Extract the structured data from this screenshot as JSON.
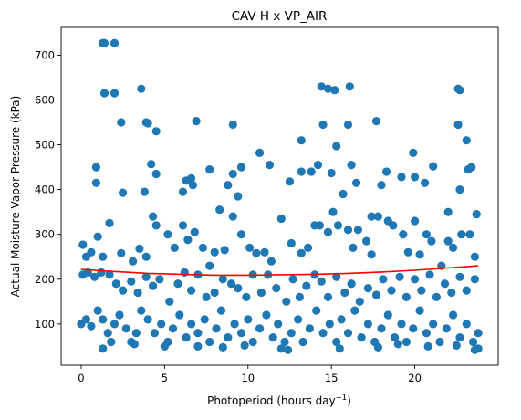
{
  "chart_data": {
    "type": "scatter",
    "title": "CAV H x VP_AIR",
    "xlabel_main": "Photoperiod (hours day",
    "xlabel_exp": "−1",
    "xlabel_end": ")",
    "ylabel": "Actual Moisture Vapor Pressure (kPa)",
    "xlim": [
      -1.2,
      25.0
    ],
    "ylim": [
      8,
      762
    ],
    "xticks": [
      0,
      5,
      10,
      15,
      20
    ],
    "yticks": [
      100,
      200,
      300,
      400,
      500,
      600,
      700
    ],
    "grid": false,
    "point_color": "#1f77b4",
    "fit_color": "#ff0000",
    "fit_curve": {
      "x": [
        0.0,
        2.0,
        4.0,
        6.0,
        8.0,
        10.0,
        12.0,
        14.0,
        16.0,
        18.0,
        20.0,
        22.0,
        23.8
      ],
      "y": [
        222,
        217,
        213,
        211,
        209,
        209,
        210,
        211,
        213,
        216,
        220,
        225,
        230
      ]
    },
    "points": [
      [
        1.3,
        727
      ],
      [
        1.4,
        727
      ],
      [
        2.0,
        727
      ],
      [
        1.4,
        615
      ],
      [
        2.0,
        615
      ],
      [
        3.6,
        625
      ],
      [
        14.4,
        630
      ],
      [
        14.8,
        625
      ],
      [
        15.2,
        622
      ],
      [
        16.1,
        630
      ],
      [
        22.6,
        625
      ],
      [
        22.7,
        622
      ],
      [
        2.4,
        550
      ],
      [
        3.9,
        550
      ],
      [
        4.0,
        548
      ],
      [
        6.9,
        553
      ],
      [
        9.1,
        545
      ],
      [
        13.2,
        510
      ],
      [
        14.5,
        545
      ],
      [
        15.3,
        497
      ],
      [
        16.0,
        545
      ],
      [
        17.7,
        553
      ],
      [
        22.6,
        545
      ],
      [
        23.1,
        510
      ],
      [
        4.5,
        530
      ],
      [
        0.9,
        450
      ],
      [
        0.9,
        415
      ],
      [
        2.5,
        393
      ],
      [
        3.8,
        395
      ],
      [
        4.2,
        457
      ],
      [
        4.5,
        435
      ],
      [
        6.1,
        395
      ],
      [
        6.3,
        420
      ],
      [
        6.7,
        410
      ],
      [
        6.6,
        425
      ],
      [
        7.7,
        445
      ],
      [
        8.3,
        355
      ],
      [
        8.8,
        410
      ],
      [
        9.1,
        435
      ],
      [
        9.4,
        385
      ],
      [
        9.6,
        450
      ],
      [
        10.7,
        482
      ],
      [
        11.3,
        455
      ],
      [
        12.5,
        418
      ],
      [
        13.2,
        440
      ],
      [
        13.8,
        440
      ],
      [
        14.2,
        455
      ],
      [
        15.0,
        437
      ],
      [
        15.7,
        390
      ],
      [
        16.2,
        455
      ],
      [
        16.5,
        415
      ],
      [
        17.4,
        340
      ],
      [
        18.0,
        410
      ],
      [
        18.3,
        440
      ],
      [
        19.2,
        428
      ],
      [
        19.9,
        482
      ],
      [
        20.0,
        428
      ],
      [
        20.6,
        415
      ],
      [
        21.1,
        452
      ],
      [
        22.0,
        350
      ],
      [
        22.7,
        400
      ],
      [
        23.2,
        445
      ],
      [
        23.4,
        450
      ],
      [
        23.7,
        345
      ],
      [
        0.1,
        277
      ],
      [
        0.3,
        250
      ],
      [
        0.6,
        260
      ],
      [
        1.0,
        295
      ],
      [
        1.3,
        250
      ],
      [
        1.7,
        325
      ],
      [
        2.4,
        258
      ],
      [
        3.1,
        240
      ],
      [
        3.5,
        268
      ],
      [
        3.9,
        250
      ],
      [
        4.3,
        340
      ],
      [
        4.5,
        320
      ],
      [
        5.2,
        300
      ],
      [
        5.6,
        270
      ],
      [
        6.1,
        320
      ],
      [
        6.4,
        288
      ],
      [
        6.8,
        305
      ],
      [
        7.3,
        270
      ],
      [
        7.7,
        230
      ],
      [
        8.0,
        260
      ],
      [
        8.6,
        265
      ],
      [
        9.1,
        340
      ],
      [
        9.6,
        300
      ],
      [
        10.1,
        270
      ],
      [
        10.5,
        258
      ],
      [
        11.0,
        260
      ],
      [
        11.4,
        240
      ],
      [
        12.0,
        335
      ],
      [
        12.6,
        280
      ],
      [
        13.2,
        258
      ],
      [
        13.6,
        270
      ],
      [
        14.0,
        320
      ],
      [
        14.3,
        320
      ],
      [
        14.8,
        305
      ],
      [
        15.1,
        350
      ],
      [
        15.4,
        320
      ],
      [
        16.0,
        310
      ],
      [
        16.3,
        270
      ],
      [
        16.6,
        310
      ],
      [
        17.1,
        285
      ],
      [
        17.4,
        255
      ],
      [
        17.8,
        340
      ],
      [
        18.4,
        330
      ],
      [
        18.7,
        320
      ],
      [
        19.3,
        300
      ],
      [
        19.6,
        260
      ],
      [
        20.0,
        330
      ],
      [
        20.3,
        255
      ],
      [
        20.7,
        300
      ],
      [
        21.0,
        285
      ],
      [
        21.6,
        230
      ],
      [
        22.0,
        285
      ],
      [
        22.3,
        270
      ],
      [
        22.8,
        300
      ],
      [
        23.3,
        300
      ],
      [
        23.6,
        250
      ],
      [
        0.1,
        210
      ],
      [
        0.4,
        215
      ],
      [
        0.8,
        205
      ],
      [
        1.2,
        215
      ],
      [
        1.7,
        210
      ],
      [
        2.1,
        190
      ],
      [
        2.5,
        175
      ],
      [
        3.0,
        195
      ],
      [
        3.4,
        170
      ],
      [
        3.9,
        205
      ],
      [
        4.3,
        185
      ],
      [
        4.7,
        200
      ],
      [
        5.3,
        150
      ],
      [
        5.8,
        190
      ],
      [
        6.2,
        215
      ],
      [
        6.6,
        175
      ],
      [
        7.0,
        210
      ],
      [
        7.5,
        160
      ],
      [
        8.0,
        170
      ],
      [
        8.5,
        200
      ],
      [
        9.0,
        190
      ],
      [
        9.4,
        180
      ],
      [
        9.9,
        160
      ],
      [
        10.3,
        210
      ],
      [
        10.8,
        170
      ],
      [
        11.2,
        210
      ],
      [
        11.7,
        180
      ],
      [
        12.3,
        150
      ],
      [
        12.7,
        200
      ],
      [
        13.1,
        160
      ],
      [
        13.5,
        185
      ],
      [
        14.0,
        210
      ],
      [
        14.4,
        195
      ],
      [
        14.8,
        160
      ],
      [
        15.3,
        205
      ],
      [
        15.8,
        170
      ],
      [
        16.2,
        190
      ],
      [
        16.7,
        150
      ],
      [
        17.2,
        180
      ],
      [
        17.7,
        165
      ],
      [
        18.1,
        200
      ],
      [
        18.6,
        175
      ],
      [
        19.1,
        205
      ],
      [
        19.5,
        160
      ],
      [
        20.0,
        200
      ],
      [
        20.4,
        175
      ],
      [
        20.9,
        210
      ],
      [
        21.3,
        160
      ],
      [
        21.8,
        190
      ],
      [
        22.2,
        170
      ],
      [
        22.7,
        205
      ],
      [
        23.1,
        175
      ],
      [
        23.6,
        200
      ],
      [
        0.0,
        100
      ],
      [
        0.3,
        110
      ],
      [
        0.6,
        95
      ],
      [
        1.0,
        130
      ],
      [
        1.3,
        110
      ],
      [
        1.6,
        80
      ],
      [
        1.8,
        60
      ],
      [
        2.0,
        100
      ],
      [
        2.3,
        120
      ],
      [
        2.7,
        90
      ],
      [
        3.0,
        60
      ],
      [
        3.3,
        80
      ],
      [
        3.6,
        130
      ],
      [
        4.0,
        110
      ],
      [
        4.4,
        80
      ],
      [
        4.8,
        100
      ],
      [
        5.2,
        60
      ],
      [
        5.5,
        90
      ],
      [
        5.9,
        120
      ],
      [
        6.3,
        70
      ],
      [
        6.6,
        100
      ],
      [
        7.0,
        80
      ],
      [
        7.4,
        110
      ],
      [
        7.7,
        60
      ],
      [
        8.1,
        90
      ],
      [
        8.4,
        130
      ],
      [
        8.8,
        70
      ],
      [
        9.2,
        100
      ],
      [
        9.6,
        80
      ],
      [
        10.0,
        110
      ],
      [
        10.3,
        60
      ],
      [
        10.7,
        90
      ],
      [
        11.1,
        120
      ],
      [
        11.5,
        70
      ],
      [
        11.8,
        100
      ],
      [
        12.2,
        60
      ],
      [
        12.6,
        80
      ],
      [
        13.0,
        110
      ],
      [
        13.3,
        60
      ],
      [
        13.7,
        90
      ],
      [
        14.1,
        130
      ],
      [
        14.5,
        80
      ],
      [
        14.9,
        100
      ],
      [
        15.3,
        60
      ],
      [
        15.6,
        110
      ],
      [
        16.0,
        80
      ],
      [
        16.4,
        130
      ],
      [
        16.8,
        70
      ],
      [
        17.2,
        100
      ],
      [
        17.6,
        60
      ],
      [
        18.0,
        90
      ],
      [
        18.4,
        120
      ],
      [
        18.8,
        70
      ],
      [
        19.2,
        100
      ],
      [
        19.5,
        60
      ],
      [
        19.9,
        90
      ],
      [
        20.3,
        130
      ],
      [
        20.7,
        80
      ],
      [
        21.1,
        100
      ],
      [
        21.5,
        60
      ],
      [
        21.9,
        90
      ],
      [
        22.3,
        120
      ],
      [
        22.7,
        70
      ],
      [
        23.1,
        100
      ],
      [
        23.5,
        60
      ],
      [
        23.8,
        80
      ],
      [
        1.3,
        45
      ],
      [
        3.2,
        55
      ],
      [
        5.0,
        50
      ],
      [
        7.0,
        50
      ],
      [
        8.5,
        48
      ],
      [
        9.8,
        52
      ],
      [
        12.0,
        45
      ],
      [
        12.4,
        42
      ],
      [
        15.5,
        45
      ],
      [
        17.8,
        48
      ],
      [
        19.0,
        55
      ],
      [
        20.8,
        50
      ],
      [
        22.5,
        52
      ],
      [
        23.6,
        42
      ],
      [
        23.8,
        45
      ]
    ]
  }
}
